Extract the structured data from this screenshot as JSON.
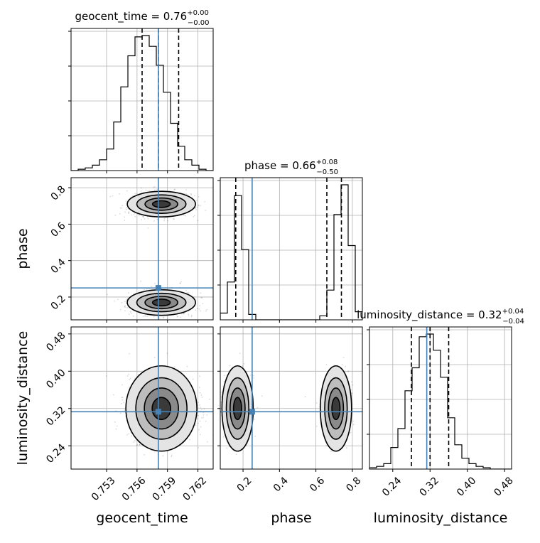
{
  "chart_data": {
    "type": "corner",
    "parameters": [
      {
        "name": "geocent_time",
        "axis_label": "geocent_time",
        "ticks": [
          "0.753",
          "0.756",
          "0.759",
          "0.762"
        ],
        "tick_values": [
          0.753,
          0.756,
          0.759,
          0.762
        ],
        "range": [
          0.7495,
          0.7635
        ],
        "truth": 0.7581
      },
      {
        "name": "phase",
        "axis_label": "phase",
        "ticks": [
          "0.2",
          "0.4",
          "0.6",
          "0.8"
        ],
        "tick_values": [
          0.2,
          0.4,
          0.6,
          0.8
        ],
        "range": [
          0.075,
          0.855
        ],
        "truth": 0.25
      },
      {
        "name": "luminosity_distance",
        "axis_label": "luminosity_distance",
        "ticks": [
          "0.24",
          "0.32",
          "0.40",
          "0.48"
        ],
        "tick_values": [
          0.24,
          0.32,
          0.4,
          0.48
        ],
        "range": [
          0.19,
          0.495
        ],
        "truth": 0.313
      }
    ],
    "titles": [
      {
        "label": "geocent_time = 0.76",
        "sup": "+0.00",
        "sub": "−0.00"
      },
      {
        "label": "phase = 0.66",
        "sup": "+0.08",
        "sub": "−0.50"
      },
      {
        "label": "luminosity_distance = 0.32",
        "sup": "+0.04",
        "sub": "−0.04"
      }
    ],
    "histograms": [
      {
        "edges_start": 0.7495,
        "bin_width": 0.0007,
        "counts": [
          0,
          1,
          2,
          4,
          8,
          16,
          36,
          62,
          85,
          99,
          100,
          92,
          78,
          58,
          35,
          18,
          8,
          4,
          1,
          0
        ],
        "quantiles": [
          0.7565,
          0.7581,
          0.7601
        ]
      },
      {
        "edges_start": 0.075,
        "bin_width": 0.039,
        "counts": [
          5,
          28,
          92,
          52,
          4,
          0,
          0,
          0,
          0,
          0,
          0,
          0,
          0,
          0,
          3,
          22,
          78,
          100,
          55,
          6
        ],
        "quantiles": [
          0.16,
          0.66,
          0.74
        ]
      },
      {
        "edges_start": 0.19,
        "bin_width": 0.01525,
        "counts": [
          1,
          2,
          4,
          16,
          30,
          58,
          75,
          98,
          100,
          88,
          68,
          38,
          18,
          8,
          4,
          2,
          1,
          0,
          0,
          0
        ],
        "quantiles": [
          0.28,
          0.32,
          0.36
        ]
      }
    ],
    "modes": [
      {
        "geocent_time": 0.7584,
        "phase": 0.71
      },
      {
        "geocent_time": 0.7584,
        "phase": 0.17
      }
    ],
    "spread": {
      "geocent_time": 0.0016,
      "phase": 0.035,
      "luminosity_distance": 0.033
    },
    "grid": true,
    "truth_color": "#4682b4",
    "line_color": "#000000"
  }
}
